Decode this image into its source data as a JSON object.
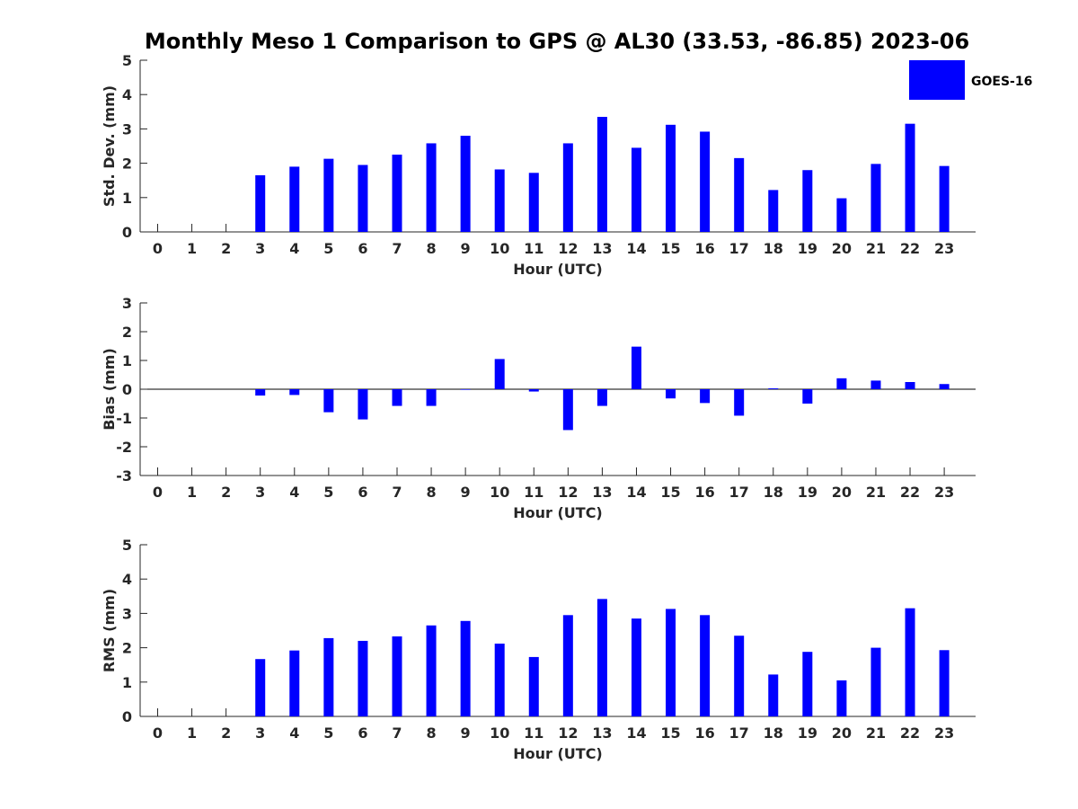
{
  "title": "Monthly Meso 1 Comparison to GPS @ AL30 (33.53, -86.85) 2023-06",
  "legend": {
    "label": "GOES-16",
    "color": "#0000ff"
  },
  "chart_data": [
    {
      "type": "bar",
      "categories": [
        "0",
        "1",
        "2",
        "3",
        "4",
        "5",
        "6",
        "7",
        "8",
        "9",
        "10",
        "11",
        "12",
        "13",
        "14",
        "15",
        "16",
        "17",
        "18",
        "19",
        "20",
        "21",
        "22",
        "23"
      ],
      "series": [
        {
          "name": "GOES-16",
          "color": "#0000ff",
          "values": [
            null,
            null,
            null,
            1.65,
            1.9,
            2.13,
            1.95,
            2.25,
            2.58,
            2.8,
            1.82,
            1.72,
            2.58,
            3.35,
            2.45,
            3.12,
            2.92,
            2.15,
            1.22,
            1.8,
            0.98,
            1.98,
            3.15,
            1.92
          ]
        }
      ],
      "xlabel": "Hour (UTC)",
      "ylabel": "Std. Dev. (mm)",
      "ylim": [
        0,
        5
      ],
      "yticks": [
        "0",
        "1",
        "2",
        "3",
        "4",
        "5"
      ],
      "grid": false,
      "legend_position": "top-right"
    },
    {
      "type": "bar",
      "categories": [
        "0",
        "1",
        "2",
        "3",
        "4",
        "5",
        "6",
        "7",
        "8",
        "9",
        "10",
        "11",
        "12",
        "13",
        "14",
        "15",
        "16",
        "17",
        "18",
        "19",
        "20",
        "21",
        "22",
        "23"
      ],
      "series": [
        {
          "name": "GOES-16",
          "color": "#0000ff",
          "values": [
            null,
            null,
            null,
            -0.22,
            -0.2,
            -0.8,
            -1.05,
            -0.58,
            -0.58,
            -0.02,
            1.05,
            -0.08,
            -1.42,
            -0.58,
            1.48,
            -0.32,
            -0.48,
            -0.92,
            0.03,
            -0.5,
            0.38,
            0.3,
            0.25,
            0.18
          ]
        }
      ],
      "xlabel": "Hour (UTC)",
      "ylabel": "Bias (mm)",
      "ylim": [
        -3,
        3
      ],
      "yticks": [
        "-3",
        "-2",
        "-1",
        "0",
        "1",
        "2",
        "3"
      ],
      "grid": false,
      "zero_line": true
    },
    {
      "type": "bar",
      "categories": [
        "0",
        "1",
        "2",
        "3",
        "4",
        "5",
        "6",
        "7",
        "8",
        "9",
        "10",
        "11",
        "12",
        "13",
        "14",
        "15",
        "16",
        "17",
        "18",
        "19",
        "20",
        "21",
        "22",
        "23"
      ],
      "series": [
        {
          "name": "GOES-16",
          "color": "#0000ff",
          "values": [
            null,
            null,
            null,
            1.67,
            1.92,
            2.28,
            2.2,
            2.33,
            2.65,
            2.78,
            2.12,
            1.73,
            2.95,
            3.42,
            2.85,
            3.13,
            2.95,
            2.35,
            1.22,
            1.88,
            1.05,
            2.0,
            3.15,
            1.93
          ]
        }
      ],
      "xlabel": "Hour (UTC)",
      "ylabel": "RMS (mm)",
      "ylim": [
        0,
        5
      ],
      "yticks": [
        "0",
        "1",
        "2",
        "3",
        "4",
        "5"
      ],
      "grid": false
    }
  ]
}
